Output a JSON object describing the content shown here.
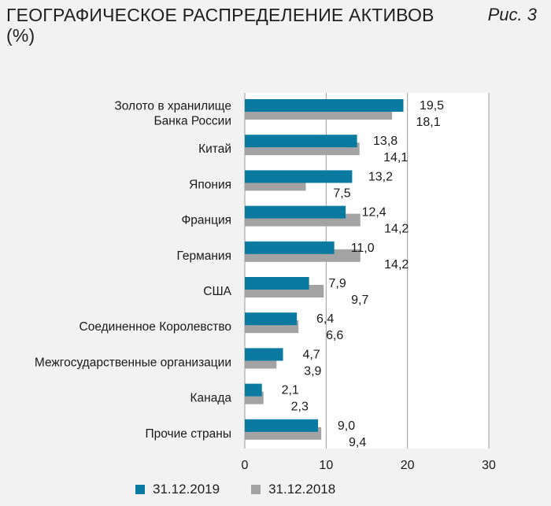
{
  "header": {
    "title_line1": "ГЕОГРАФИЧЕСКОЕ РАСПРЕДЕЛЕНИЕ АКТИВОВ",
    "title_line2": "(%)",
    "figure_label": "Рис. 3"
  },
  "colors": {
    "series_2019": "#0a7aa0",
    "series_2018": "#a3a3a3",
    "grid": "#9a9a9a",
    "plot_bg": "#ffffff",
    "page_bg": "#f2f2f2"
  },
  "chart_data": {
    "type": "bar",
    "orientation": "horizontal",
    "title": "ГЕОГРАФИЧЕСКОЕ РАСПРЕДЕЛЕНИЕ АКТИВОВ (%)",
    "categories": [
      "Золото в хранилище Банка России",
      "Китай",
      "Япония",
      "Франция",
      "Германия",
      "США",
      "Соединенное Королевство",
      "Межгосударственные организации",
      "Канада",
      "Прочие страны"
    ],
    "category_lines": [
      [
        "Золото в хранилище",
        "Банка России"
      ],
      [
        "Китай"
      ],
      [
        "Япония"
      ],
      [
        "Франция"
      ],
      [
        "Германия"
      ],
      [
        "США"
      ],
      [
        "Соединенное Королевство"
      ],
      [
        "Межгосударственные организации"
      ],
      [
        "Канада"
      ],
      [
        "Прочие страны"
      ]
    ],
    "series": [
      {
        "name": "31.12.2019",
        "values": [
          19.5,
          13.8,
          13.2,
          12.4,
          11.0,
          7.9,
          6.4,
          4.7,
          2.1,
          9.0
        ],
        "labels": [
          "19,5",
          "13,8",
          "13,2",
          "12,4",
          "11,0",
          "7,9",
          "6,4",
          "4,7",
          "2,1",
          "9,0"
        ]
      },
      {
        "name": "31.12.2018",
        "values": [
          18.1,
          14.1,
          7.5,
          14.2,
          14.2,
          9.7,
          6.6,
          3.9,
          2.3,
          9.4
        ],
        "labels": [
          "18,1",
          "14,1",
          "7,5",
          "14,2",
          "14,2",
          "9,7",
          "6,6",
          "3,9",
          "2,3",
          "9,4"
        ]
      }
    ],
    "xlim": [
      0,
      30
    ],
    "xticks": [
      0,
      10,
      20,
      30
    ],
    "xtick_labels": [
      "0",
      "10",
      "20",
      "30"
    ],
    "grid": true,
    "legend": "bottom"
  }
}
